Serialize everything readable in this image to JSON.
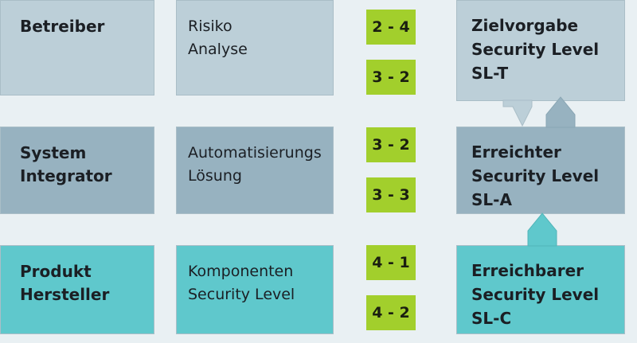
{
  "rows": [
    {
      "role": [
        "Betreiber"
      ],
      "desc": [
        "Risiko",
        "Analyse"
      ],
      "tags": [
        "2 - 4",
        "3 - 2"
      ],
      "target": [
        "Zielvorgabe",
        "Security Level",
        "SL-T"
      ]
    },
    {
      "role": [
        "System",
        "Integrator"
      ],
      "desc": [
        "Automatisierungs",
        "Lösung"
      ],
      "tags": [
        "3 - 2",
        "3 - 3"
      ],
      "target": [
        "Erreichter",
        "Security Level",
        "SL-A"
      ]
    },
    {
      "role": [
        "Produkt",
        "Hersteller"
      ],
      "desc": [
        "Komponenten",
        "Security Level"
      ],
      "tags": [
        "4 - 1",
        "4 - 2"
      ],
      "target": [
        "Erreichbarer",
        "Security Level",
        "SL-C"
      ]
    }
  ],
  "colors": {
    "background": "#e9f0f3",
    "row_target": "#bccfd8",
    "row_achieved": "#97b2c0",
    "row_capability": "#5fc8cc",
    "tag": "#a2cf2c"
  }
}
